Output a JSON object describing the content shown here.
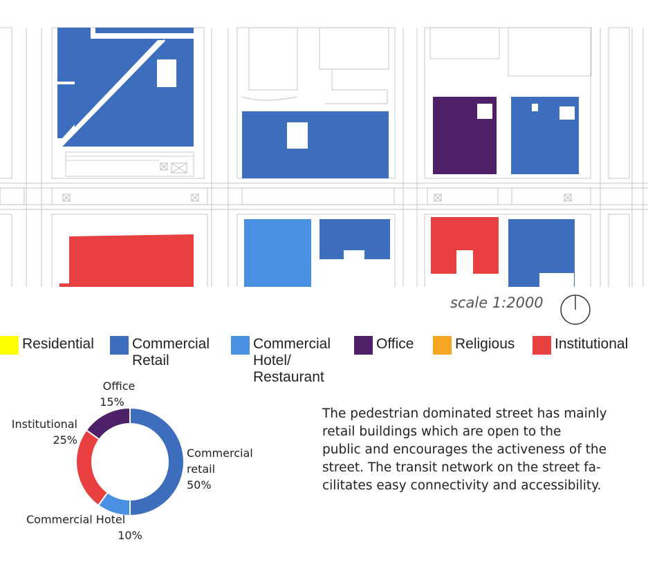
{
  "map": {
    "scale_label": "scale 1:2000",
    "colors": {
      "residential": "#ffff00",
      "commercial_retail": "#3d6ebd",
      "commercial_hotel": "#4a90e2",
      "office": "#4e2068",
      "religious": "#f5a623",
      "institutional": "#e84040"
    }
  },
  "legend": [
    {
      "label": "Residential",
      "color": "#ffff00"
    },
    {
      "label": "Commercial\nRetail",
      "color": "#3d6ebd"
    },
    {
      "label": "Commercial\nHotel/\nRestaurant",
      "color": "#4a90e2"
    },
    {
      "label": "Office",
      "color": "#4e2068"
    },
    {
      "label": "Religious",
      "color": "#f5a623"
    },
    {
      "label": "Institutional",
      "color": "#e84040"
    }
  ],
  "chart_data": {
    "type": "pie",
    "series": [
      {
        "label_lines": [
          "Commercial",
          "retail",
          "50%"
        ],
        "value": 50,
        "color": "#3d6ebd"
      },
      {
        "label_lines": [
          "Commercial  Hotel",
          "10%"
        ],
        "value": 10,
        "color": "#4a90e2"
      },
      {
        "label_lines": [
          "Institutional",
          "25%"
        ],
        "value": 25,
        "color": "#e84040"
      },
      {
        "label_lines": [
          "Office",
          "15%"
        ],
        "value": 15,
        "color": "#4e2068"
      }
    ]
  },
  "description": {
    "lines": [
      "The pedestrian dominated street has mainly",
      "retail buildings which are open to the",
      "public and encourages the activeness of the",
      "street. The transit network on the street fa-",
      "cilitates easy connectivity and accessibility."
    ]
  }
}
